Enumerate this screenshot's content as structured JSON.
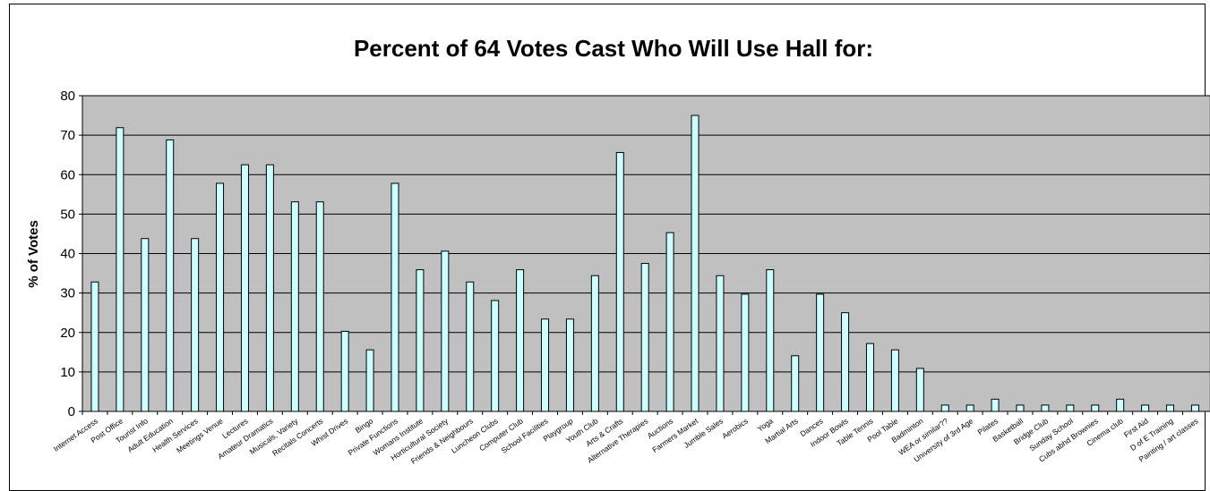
{
  "chart_data": {
    "type": "bar",
    "title": "Percent of 64 Votes Cast Who Will Use Hall for:",
    "xlabel": "",
    "ylabel": "% of Votes",
    "ylim": [
      0,
      80
    ],
    "yticks": [
      "0",
      "10",
      "20",
      "30",
      "40",
      "50",
      "60",
      "70",
      "80"
    ],
    "grid": true,
    "plot_background": "#c0c0c0",
    "bar_color": "#ccffff",
    "bar_outline": "#000000",
    "categories": [
      "Internet Access",
      "Post Office",
      "Tourist Info",
      "Adult Education",
      "Health Services",
      "Meetings Venue",
      "Lectures",
      "Amateur Dramatics",
      "Musicals, Variety",
      "Recitals Concerts",
      "Whist Drives",
      "Bingo",
      "Private Functions",
      "Womans Institute",
      "Horticultural Society",
      "Friends & Neighbours",
      "Luncheon Clubs",
      "Computer Club",
      "School Facilities",
      "Playgroup",
      "Youth Club",
      "Arts & Crafts",
      "Alternative Therapies",
      "Auctions",
      "Farmers Market",
      "Jumble Sales",
      "Aerobics",
      "Yoga",
      "Martial Arts",
      "Dances",
      "Indoor Bowls",
      "Table Tennis",
      "Pool Table",
      "Badminton",
      "WEA or similar??",
      "University of 3rd Age",
      "Pilates",
      "Basketball",
      "Bridge Club",
      "Sunday School",
      "Cubs abhd Brownies",
      "Cinema club",
      "First Aid",
      "D of E Training",
      "Painting / art classes"
    ],
    "values": [
      32.8,
      71.9,
      43.8,
      68.8,
      43.8,
      57.8,
      62.5,
      62.5,
      53.1,
      53.1,
      20.3,
      15.6,
      57.8,
      35.9,
      40.6,
      32.8,
      28.1,
      35.9,
      23.4,
      23.4,
      34.4,
      65.6,
      37.5,
      45.3,
      75.0,
      34.4,
      29.7,
      35.9,
      14.1,
      29.7,
      25.0,
      17.2,
      15.6,
      10.9,
      1.6,
      1.6,
      3.1,
      1.6,
      1.6,
      1.6,
      1.6,
      3.1,
      1.6,
      1.6,
      1.6
    ]
  }
}
